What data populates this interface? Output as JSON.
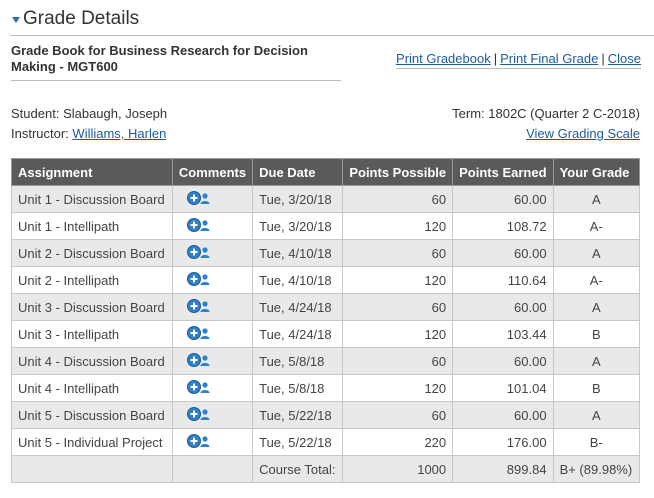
{
  "header": {
    "title": "Grade Details"
  },
  "gradebook": {
    "title": "Grade Book for Business Research for Decision Making - MGT600",
    "actions": [
      "Print Gradebook",
      "Print Final Grade",
      "Close"
    ]
  },
  "student": {
    "label": "Student:",
    "name": "Slabaugh, Joseph"
  },
  "instructor": {
    "label": "Instructor:",
    "name": "Williams, Harlen"
  },
  "term": {
    "text": "Term: 1802C (Quarter 2 C-2018)"
  },
  "grading_scale_link": "View Grading Scale",
  "table": {
    "headers": [
      "Assignment",
      "Comments",
      "Due Date",
      "Points Possible",
      "Points Earned",
      "Your Grade"
    ],
    "rows": [
      {
        "assignment": "Unit 1 - Discussion Board",
        "due": "Tue, 3/20/18",
        "possible": "60",
        "earned": "60.00",
        "grade": "A"
      },
      {
        "assignment": "Unit 1 - Intellipath",
        "due": "Tue, 3/20/18",
        "possible": "120",
        "earned": "108.72",
        "grade": "A-"
      },
      {
        "assignment": "Unit 2 - Discussion Board",
        "due": "Tue, 4/10/18",
        "possible": "60",
        "earned": "60.00",
        "grade": "A"
      },
      {
        "assignment": "Unit 2 - Intellipath",
        "due": "Tue, 4/10/18",
        "possible": "120",
        "earned": "110.64",
        "grade": "A-"
      },
      {
        "assignment": "Unit 3 - Discussion Board",
        "due": "Tue, 4/24/18",
        "possible": "60",
        "earned": "60.00",
        "grade": "A"
      },
      {
        "assignment": "Unit 3 - Intellipath",
        "due": "Tue, 4/24/18",
        "possible": "120",
        "earned": "103.44",
        "grade": "B"
      },
      {
        "assignment": "Unit 4 - Discussion Board",
        "due": "Tue, 5/8/18",
        "possible": "60",
        "earned": "60.00",
        "grade": "A"
      },
      {
        "assignment": "Unit 4 - Intellipath",
        "due": "Tue, 5/8/18",
        "possible": "120",
        "earned": "101.04",
        "grade": "B"
      },
      {
        "assignment": "Unit 5 - Discussion Board",
        "due": "Tue, 5/22/18",
        "possible": "60",
        "earned": "60.00",
        "grade": "A"
      },
      {
        "assignment": "Unit 5 - Individual Project",
        "due": "Tue, 5/22/18",
        "possible": "220",
        "earned": "176.00",
        "grade": "B-"
      }
    ],
    "total": {
      "label": "Course Total:",
      "possible": "1000",
      "earned": "899.84",
      "grade": "B+ (89.98%)"
    }
  },
  "colors": {
    "header_bg": "#5a5a5a",
    "link": "#1b5b9a",
    "icon_blue": "#2f7fc9"
  },
  "icons": {
    "caret": "caret-down-icon",
    "comment": "comment-add-user-icon"
  }
}
